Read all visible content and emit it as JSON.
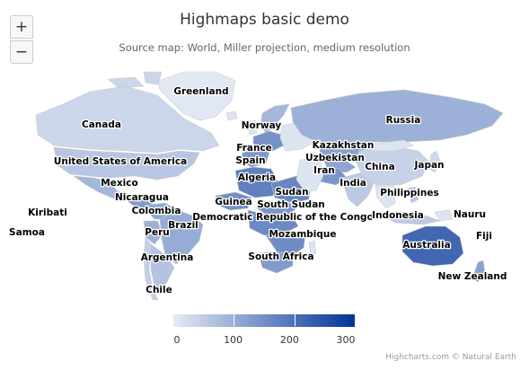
{
  "title": "Highmaps basic demo",
  "subtitle": "Source map: World, Miller projection, medium resolution",
  "credits": "Highcharts.com © Natural Earth",
  "zoom": {
    "in_label": "+",
    "out_label": "−"
  },
  "legend": {
    "min": 0,
    "max": 300,
    "ticks": [
      {
        "value": 0,
        "label": "0"
      },
      {
        "value": 100,
        "label": "100"
      },
      {
        "value": 200,
        "label": "200"
      },
      {
        "value": 300,
        "label": "300"
      }
    ]
  },
  "colors": {
    "scale_min": "#e6ebf5",
    "scale_max": "#003399",
    "null_color": "#dde4f1",
    "border": "#cccccc",
    "label_halo": "#ffffff",
    "label_text": "#000000"
  },
  "chart_data": {
    "type": "choropleth",
    "title": "Highmaps basic demo",
    "subtitle": "Source map: World, Miller projection, medium resolution",
    "color_axis": {
      "min": 0,
      "max": 300
    },
    "regions": [
      {
        "name": "Greenland",
        "value": 5
      },
      {
        "name": "Canada",
        "value": 35
      },
      {
        "name": "United States of America",
        "value": 60
      },
      {
        "name": "Mexico",
        "value": 85
      },
      {
        "name": "Nicaragua",
        "value": 130
      },
      {
        "name": "Colombia",
        "value": 110
      },
      {
        "name": "Peru",
        "value": 95
      },
      {
        "name": "Brazil",
        "value": 105
      },
      {
        "name": "Argentina",
        "value": 65
      },
      {
        "name": "Chile",
        "value": 45
      },
      {
        "name": "Norway",
        "value": 85
      },
      {
        "name": "France",
        "value": 145
      },
      {
        "name": "Spain",
        "value": 135
      },
      {
        "name": "Algeria",
        "value": 175
      },
      {
        "name": "Guinea",
        "value": 150
      },
      {
        "name": "Sudan",
        "value": 165
      },
      {
        "name": "South Sudan",
        "value": 140
      },
      {
        "name": "Democratic Republic of the Congo",
        "value": 160
      },
      {
        "name": "Mozambique",
        "value": 155
      },
      {
        "name": "South Africa",
        "value": 130
      },
      {
        "name": "Russia",
        "value": 95
      },
      {
        "name": "Kazakhstan",
        "value": 120
      },
      {
        "name": "Uzbekistan",
        "value": 115
      },
      {
        "name": "Iran",
        "value": 140
      },
      {
        "name": "India",
        "value": 55
      },
      {
        "name": "China",
        "value": 40
      },
      {
        "name": "Japan",
        "value": 30
      },
      {
        "name": "Philippines",
        "value": 65
      },
      {
        "name": "Indonesia",
        "value": 55
      },
      {
        "name": "Nauru",
        "value": 10
      },
      {
        "name": "Fiji",
        "value": 15
      },
      {
        "name": "Australia",
        "value": 215
      },
      {
        "name": "New Zealand",
        "value": 120
      },
      {
        "name": "Kiribati",
        "value": 10
      },
      {
        "name": "Samoa",
        "value": 10
      }
    ]
  }
}
